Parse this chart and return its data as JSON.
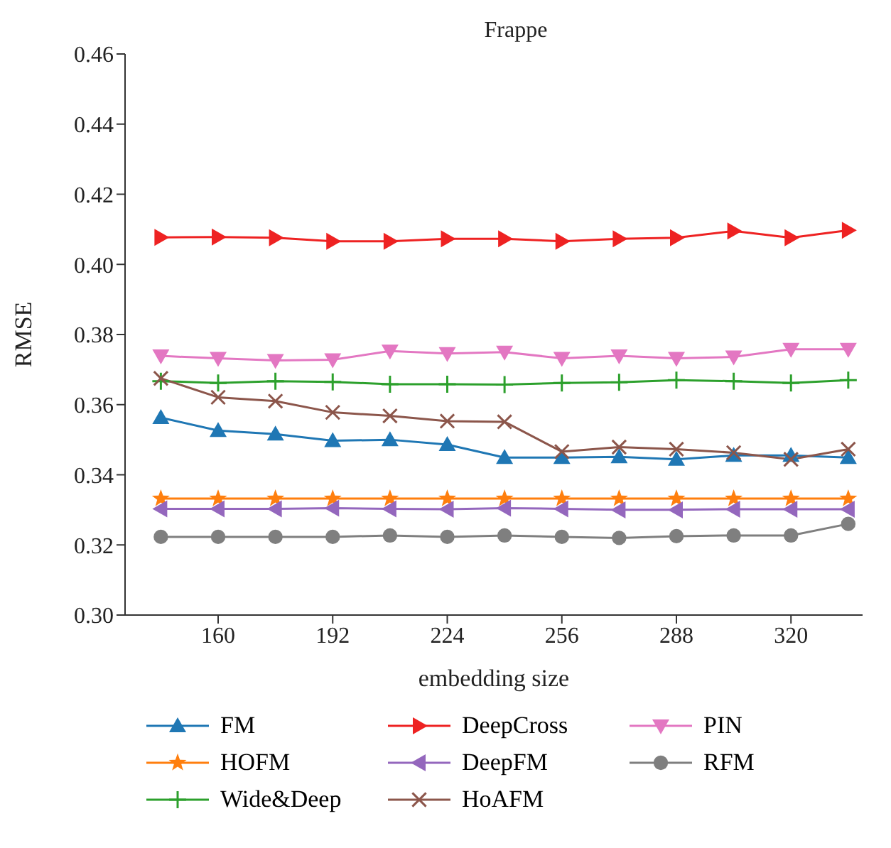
{
  "chart_data": {
    "type": "line",
    "title": "Frappe",
    "xlabel": "embedding size",
    "ylabel": "RMSE",
    "x": [
      144,
      160,
      176,
      192,
      208,
      224,
      240,
      256,
      272,
      288,
      304,
      320,
      336
    ],
    "xlim": [
      134,
      340
    ],
    "xticks": [
      160,
      192,
      224,
      256,
      288,
      320
    ],
    "ylim": [
      0.3,
      0.46
    ],
    "yticks": [
      {
        "value": 0.3,
        "label": "0.30"
      },
      {
        "value": 0.32,
        "label": "0.32"
      },
      {
        "value": 0.34,
        "label": "0.34"
      },
      {
        "value": 0.36,
        "label": "0.36"
      },
      {
        "value": 0.38,
        "label": "0.38"
      },
      {
        "value": 0.4,
        "label": "0.40"
      },
      {
        "value": 0.42,
        "label": "0.42"
      },
      {
        "value": 0.44,
        "label": "0.44"
      },
      {
        "value": 0.46,
        "label": "0.46"
      }
    ],
    "grid": false,
    "legend": "bottom",
    "line_style": "solid",
    "series": [
      {
        "name": "FM",
        "color": "#1f77b4",
        "marker": "triangle",
        "values": [
          0.3563,
          0.3526,
          0.3516,
          0.3497,
          0.35,
          0.3486,
          0.3449,
          0.3449,
          0.3451,
          0.3444,
          0.3455,
          0.3455,
          0.3449
        ]
      },
      {
        "name": "HOFM",
        "color": "#ff7f0e",
        "marker": "star",
        "values": [
          0.3332,
          0.3332,
          0.3332,
          0.3332,
          0.3332,
          0.3332,
          0.3332,
          0.3332,
          0.3332,
          0.3332,
          0.3332,
          0.3332,
          0.3332
        ]
      },
      {
        "name": "Wide&Deep",
        "color": "#2ca02c",
        "marker": "plus",
        "values": [
          0.3667,
          0.3662,
          0.3667,
          0.3665,
          0.3658,
          0.3658,
          0.3657,
          0.3662,
          0.3664,
          0.367,
          0.3667,
          0.3662,
          0.367
        ]
      },
      {
        "name": "DeepCross",
        "color": "#ee2222",
        "marker": "triangle-right",
        "values": [
          0.4077,
          0.4078,
          0.4076,
          0.4066,
          0.4066,
          0.4073,
          0.4073,
          0.4066,
          0.4073,
          0.4076,
          0.4095,
          0.4076,
          0.4097
        ]
      },
      {
        "name": "DeepFM",
        "color": "#9467bd",
        "marker": "triangle-left",
        "values": [
          0.3303,
          0.3303,
          0.3303,
          0.3305,
          0.3303,
          0.3302,
          0.3305,
          0.3303,
          0.33,
          0.33,
          0.3302,
          0.3302,
          0.3302
        ]
      },
      {
        "name": "HoAFM",
        "color": "#8c564b",
        "marker": "cross",
        "values": [
          0.3675,
          0.3621,
          0.361,
          0.3578,
          0.3568,
          0.3553,
          0.3551,
          0.3466,
          0.3479,
          0.3473,
          0.3463,
          0.3444,
          0.3473
        ]
      },
      {
        "name": "PIN",
        "color": "#e377c2",
        "marker": "triangle-down",
        "values": [
          0.3739,
          0.3732,
          0.3726,
          0.3728,
          0.3753,
          0.3746,
          0.375,
          0.3732,
          0.3739,
          0.3732,
          0.3736,
          0.3758,
          0.3758
        ]
      },
      {
        "name": "RFM",
        "color": "#7f7f7f",
        "marker": "circle",
        "values": [
          0.3223,
          0.3223,
          0.3223,
          0.3223,
          0.3227,
          0.3223,
          0.3227,
          0.3223,
          0.322,
          0.3225,
          0.3227,
          0.3227,
          0.326
        ]
      }
    ]
  }
}
